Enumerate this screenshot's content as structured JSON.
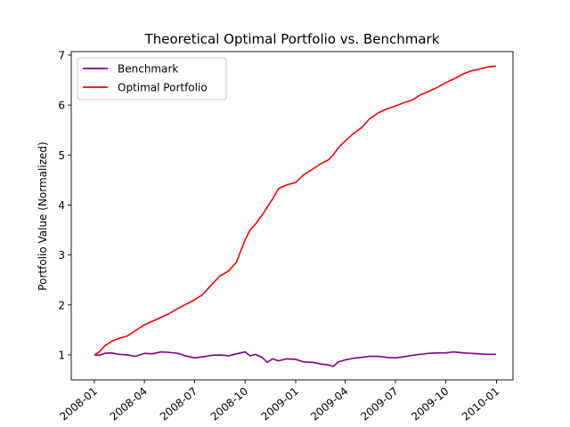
{
  "chart_data": {
    "type": "line",
    "title": "Theoretical Optimal Portfolio vs. Benchmark",
    "xlabel": "",
    "ylabel": "Portfolio Value (Normalized)",
    "xlim": [
      "2007-11-20",
      "2010-01-31"
    ],
    "ylim": [
      0.5,
      7.07
    ],
    "xticks": [
      "2008-01",
      "2008-04",
      "2008-07",
      "2008-10",
      "2009-01",
      "2009-04",
      "2009-07",
      "2009-10",
      "2010-01"
    ],
    "yticks": [
      1,
      2,
      3,
      4,
      5,
      6,
      7
    ],
    "grid": false,
    "legend_position": "top-left",
    "series": [
      {
        "name": "Benchmark",
        "color": "#800080",
        "points": [
          [
            "2008-01-01",
            1.0
          ],
          [
            "2008-01-10",
            0.99
          ],
          [
            "2008-01-20",
            1.03
          ],
          [
            "2008-02-01",
            1.04
          ],
          [
            "2008-02-15",
            1.01
          ],
          [
            "2008-03-01",
            1.0
          ],
          [
            "2008-03-15",
            0.97
          ],
          [
            "2008-04-01",
            1.03
          ],
          [
            "2008-04-15",
            1.02
          ],
          [
            "2008-05-01",
            1.06
          ],
          [
            "2008-05-15",
            1.05
          ],
          [
            "2008-06-01",
            1.03
          ],
          [
            "2008-06-15",
            0.98
          ],
          [
            "2008-07-01",
            0.94
          ],
          [
            "2008-07-15",
            0.96
          ],
          [
            "2008-08-01",
            0.99
          ],
          [
            "2008-08-15",
            1.0
          ],
          [
            "2008-09-01",
            0.98
          ],
          [
            "2008-09-15",
            1.02
          ],
          [
            "2008-10-01",
            1.06
          ],
          [
            "2008-10-10",
            0.98
          ],
          [
            "2008-10-20",
            1.01
          ],
          [
            "2008-11-01",
            0.95
          ],
          [
            "2008-11-10",
            0.85
          ],
          [
            "2008-11-20",
            0.92
          ],
          [
            "2008-12-01",
            0.88
          ],
          [
            "2008-12-15",
            0.92
          ],
          [
            "2009-01-01",
            0.91
          ],
          [
            "2009-01-15",
            0.86
          ],
          [
            "2009-02-01",
            0.85
          ],
          [
            "2009-02-15",
            0.82
          ],
          [
            "2009-03-01",
            0.8
          ],
          [
            "2009-03-10",
            0.77
          ],
          [
            "2009-03-20",
            0.86
          ],
          [
            "2009-04-01",
            0.9
          ],
          [
            "2009-04-15",
            0.93
          ],
          [
            "2009-05-01",
            0.95
          ],
          [
            "2009-05-15",
            0.97
          ],
          [
            "2009-06-01",
            0.97
          ],
          [
            "2009-06-15",
            0.95
          ],
          [
            "2009-07-01",
            0.94
          ],
          [
            "2009-07-15",
            0.96
          ],
          [
            "2009-08-01",
            0.99
          ],
          [
            "2009-08-15",
            1.01
          ],
          [
            "2009-09-01",
            1.03
          ],
          [
            "2009-09-15",
            1.04
          ],
          [
            "2009-10-01",
            1.04
          ],
          [
            "2009-10-15",
            1.06
          ],
          [
            "2009-11-01",
            1.04
          ],
          [
            "2009-11-15",
            1.03
          ],
          [
            "2009-12-01",
            1.02
          ],
          [
            "2009-12-15",
            1.01
          ],
          [
            "2009-12-31",
            1.01
          ]
        ]
      },
      {
        "name": "Optimal Portfolio",
        "color": "#ff0000",
        "points": [
          [
            "2008-01-01",
            1.0
          ],
          [
            "2008-01-10",
            1.06
          ],
          [
            "2008-01-20",
            1.18
          ],
          [
            "2008-02-01",
            1.27
          ],
          [
            "2008-02-15",
            1.33
          ],
          [
            "2008-03-01",
            1.38
          ],
          [
            "2008-03-15",
            1.48
          ],
          [
            "2008-04-01",
            1.6
          ],
          [
            "2008-04-15",
            1.67
          ],
          [
            "2008-05-01",
            1.75
          ],
          [
            "2008-05-15",
            1.82
          ],
          [
            "2008-06-01",
            1.93
          ],
          [
            "2008-06-15",
            2.01
          ],
          [
            "2008-07-01",
            2.1
          ],
          [
            "2008-07-15",
            2.2
          ],
          [
            "2008-08-01",
            2.4
          ],
          [
            "2008-08-15",
            2.57
          ],
          [
            "2008-09-01",
            2.68
          ],
          [
            "2008-09-15",
            2.85
          ],
          [
            "2008-10-01",
            3.3
          ],
          [
            "2008-10-10",
            3.5
          ],
          [
            "2008-10-20",
            3.62
          ],
          [
            "2008-11-01",
            3.8
          ],
          [
            "2008-11-10",
            3.95
          ],
          [
            "2008-11-20",
            4.12
          ],
          [
            "2008-12-01",
            4.33
          ],
          [
            "2008-12-15",
            4.4
          ],
          [
            "2009-01-01",
            4.45
          ],
          [
            "2009-01-15",
            4.6
          ],
          [
            "2009-02-01",
            4.72
          ],
          [
            "2009-02-15",
            4.82
          ],
          [
            "2009-03-01",
            4.9
          ],
          [
            "2009-03-10",
            5.0
          ],
          [
            "2009-03-20",
            5.15
          ],
          [
            "2009-04-01",
            5.28
          ],
          [
            "2009-04-15",
            5.42
          ],
          [
            "2009-05-01",
            5.55
          ],
          [
            "2009-05-15",
            5.72
          ],
          [
            "2009-06-01",
            5.85
          ],
          [
            "2009-06-15",
            5.92
          ],
          [
            "2009-07-01",
            5.98
          ],
          [
            "2009-07-15",
            6.04
          ],
          [
            "2009-08-01",
            6.1
          ],
          [
            "2009-08-15",
            6.2
          ],
          [
            "2009-09-01",
            6.28
          ],
          [
            "2009-09-15",
            6.35
          ],
          [
            "2009-10-01",
            6.45
          ],
          [
            "2009-10-15",
            6.52
          ],
          [
            "2009-11-01",
            6.62
          ],
          [
            "2009-11-15",
            6.68
          ],
          [
            "2009-12-01",
            6.72
          ],
          [
            "2009-12-15",
            6.76
          ],
          [
            "2009-12-31",
            6.78
          ]
        ]
      }
    ]
  }
}
